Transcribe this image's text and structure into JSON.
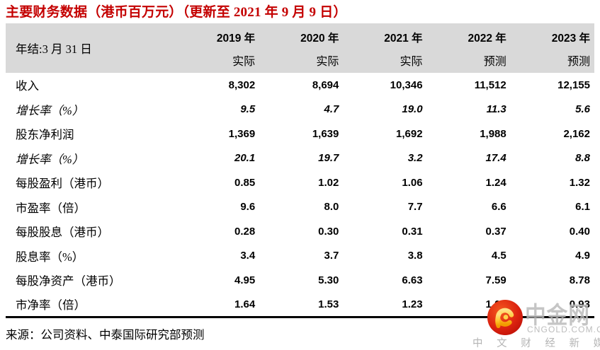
{
  "title": "主要财务数据（港币百万元）（更新至 2021 年 9 月 9 日）",
  "table": {
    "header": {
      "row_label": "年结:3 月 31 日",
      "columns": [
        {
          "year": "2019 年",
          "type": "实际"
        },
        {
          "year": "2020 年",
          "type": "实际"
        },
        {
          "year": "2021 年",
          "type": "实际"
        },
        {
          "year": "2022 年",
          "type": "预测"
        },
        {
          "year": "2023 年",
          "type": "预测"
        }
      ]
    },
    "rows": [
      {
        "label": "收入",
        "italic": false,
        "values": [
          "8,302",
          "8,694",
          "10,346",
          "11,512",
          "12,155"
        ]
      },
      {
        "label": "增长率（%）",
        "italic": true,
        "values": [
          "9.5",
          "4.7",
          "19.0",
          "11.3",
          "5.6"
        ]
      },
      {
        "label": "股东净利润",
        "italic": false,
        "values": [
          "1,369",
          "1,639",
          "1,692",
          "1,988",
          "2,162"
        ]
      },
      {
        "label": "增长率（%）",
        "italic": true,
        "values": [
          "20.1",
          "19.7",
          "3.2",
          "17.4",
          "8.8"
        ]
      },
      {
        "label": "每股盈利（港币）",
        "italic": false,
        "values": [
          "0.85",
          "1.02",
          "1.06",
          "1.24",
          "1.32"
        ]
      },
      {
        "label": "市盈率（倍）",
        "italic": false,
        "values": [
          "9.6",
          "8.0",
          "7.7",
          "6.6",
          "6.1"
        ]
      },
      {
        "label": "每股股息（港币）",
        "italic": false,
        "values": [
          "0.28",
          "0.30",
          "0.31",
          "0.37",
          "0.40"
        ]
      },
      {
        "label": "股息率（%）",
        "italic": false,
        "values": [
          "3.4",
          "3.7",
          "3.8",
          "4.5",
          "4.9"
        ]
      },
      {
        "label": "每股净资产（港币）",
        "italic": false,
        "values": [
          "4.95",
          "5.30",
          "6.63",
          "7.59",
          "8.78"
        ]
      },
      {
        "label": "市净率（倍）",
        "italic": false,
        "values": [
          "1.64",
          "1.53",
          "1.23",
          "1.07",
          "0.93"
        ]
      }
    ]
  },
  "source": "来源：公司资料、中泰国际研究部预测",
  "watermark": {
    "name": "中金网",
    "domain": "CNGOLD.COM.CN",
    "tagline": "中 文 财 经 新 媒 体"
  },
  "colors": {
    "title_red": "#c40000",
    "header_gray": "#d9d9d9",
    "table_border": "#000000",
    "watermark_gray": "#b9b9b9",
    "logo_red": "#d6281a",
    "logo_yellow": "#ffc836"
  }
}
